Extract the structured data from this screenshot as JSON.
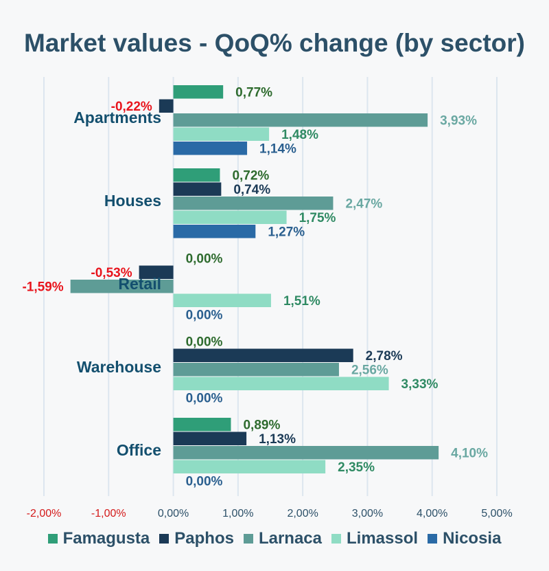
{
  "chart_data": {
    "type": "bar",
    "orientation": "horizontal",
    "title": "Market values - QoQ% change (by sector)",
    "categories": [
      "Apartments",
      "Houses",
      "Retail",
      "Warehouse",
      "Office"
    ],
    "series": [
      {
        "name": "Famagusta",
        "color": "#2f9e78",
        "label_color": "#2e6b2e",
        "values": [
          0.77,
          0.72,
          0.0,
          0.0,
          0.89
        ],
        "labels": [
          "0,77%",
          "0,72%",
          "0,00%",
          "0,00%",
          "0,89%"
        ]
      },
      {
        "name": "Paphos",
        "color": "#1b3a56",
        "label_color": "#1b3a56",
        "values": [
          -0.22,
          0.74,
          -0.53,
          2.78,
          1.13
        ],
        "labels": [
          "-0,22%",
          "0,74%",
          "-0,53%",
          "2,78%",
          "1,13%"
        ]
      },
      {
        "name": "Larnaca",
        "color": "#5e9c96",
        "label_color": "#6aa8a2",
        "values": [
          3.93,
          2.47,
          -1.59,
          2.56,
          4.1
        ],
        "labels": [
          "3,93%",
          "2,47%",
          "-1,59%",
          "2,56%",
          "4,10%"
        ]
      },
      {
        "name": "Limassol",
        "color": "#8fdcc4",
        "label_color": "#2f8a63",
        "values": [
          1.48,
          1.75,
          1.51,
          3.33,
          2.35
        ],
        "labels": [
          "1,48%",
          "1,75%",
          "1,51%",
          "3,33%",
          "2,35%"
        ]
      },
      {
        "name": "Nicosia",
        "color": "#2a6aa6",
        "label_color": "#2a5f8f",
        "values": [
          1.14,
          1.27,
          0.0,
          0.0,
          0.0
        ],
        "labels": [
          "1,14%",
          "1,27%",
          "0,00%",
          "0,00%",
          "0,00%"
        ]
      }
    ],
    "negative_label_color": "#e8141c",
    "xlim": [
      -2,
      5
    ],
    "xticks": [
      {
        "value": -2,
        "label": "-2,00%"
      },
      {
        "value": -1,
        "label": "-1,00%"
      },
      {
        "value": 0,
        "label": "0,00%"
      },
      {
        "value": 1,
        "label": "1,00%"
      },
      {
        "value": 2,
        "label": "2,00%"
      },
      {
        "value": 3,
        "label": "3,00%"
      },
      {
        "value": 4,
        "label": "4,00%"
      },
      {
        "value": 5,
        "label": "5,00%"
      }
    ],
    "negative_tick_color": "#d41a1a",
    "positive_tick_color": "#2c5068",
    "gridlines": true,
    "legend_position": "bottom"
  }
}
